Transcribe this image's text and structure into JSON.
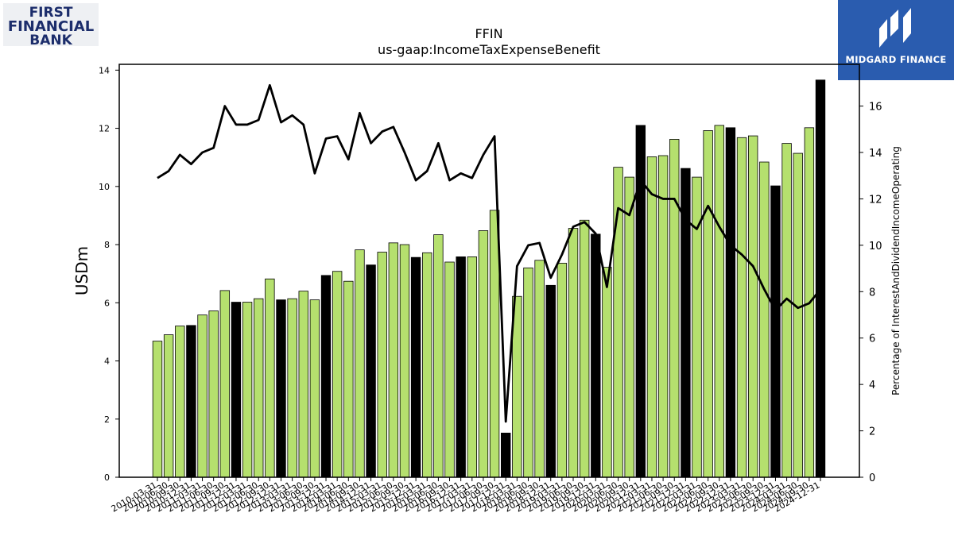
{
  "logos": {
    "left": {
      "line1": "FIRST",
      "line2": "FINANCIAL",
      "line3": "BANK"
    },
    "right": {
      "name": "MIDGARD FINANCE"
    }
  },
  "chart_data": {
    "type": "bar",
    "title": "FFIN",
    "subtitle": "us-gaap:IncomeTaxExpenseBenefit",
    "ylabel": "USDm",
    "ylabel_right": "Percentage of InterestAndDividendIncomeOperating",
    "ylim": [
      0,
      14.2
    ],
    "ylim_right": [
      0,
      17.8
    ],
    "yticks": [
      0,
      2,
      4,
      6,
      8,
      10,
      12,
      14
    ],
    "yticks_right": [
      0,
      2,
      4,
      6,
      8,
      10,
      12,
      14,
      16
    ],
    "grid": false,
    "colors": {
      "bar_default": "#b5e06e",
      "bar_q4": "#000000",
      "line": "#000000"
    },
    "categories": [
      "2010-03-31",
      "2010-06-30",
      "2010-09-30",
      "2010-12-31",
      "2011-03-31",
      "2011-06-30",
      "2011-09-30",
      "2011-12-31",
      "2012-03-31",
      "2012-06-30",
      "2012-09-30",
      "2012-12-31",
      "2013-03-31",
      "2013-06-30",
      "2013-09-30",
      "2013-12-31",
      "2014-03-31",
      "2014-06-30",
      "2014-09-30",
      "2014-12-31",
      "2015-03-31",
      "2015-06-30",
      "2015-09-30",
      "2015-12-31",
      "2016-03-31",
      "2016-06-30",
      "2016-09-30",
      "2016-12-31",
      "2017-03-31",
      "2017-06-30",
      "2017-09-30",
      "2017-12-31",
      "2018-03-31",
      "2018-06-30",
      "2018-09-30",
      "2018-12-31",
      "2019-03-31",
      "2019-06-30",
      "2019-09-30",
      "2019-12-31",
      "2020-03-31",
      "2020-06-30",
      "2020-09-30",
      "2020-12-31",
      "2021-03-31",
      "2021-06-30",
      "2021-09-30",
      "2021-12-31",
      "2022-03-31",
      "2022-06-30",
      "2022-09-30",
      "2022-12-31",
      "2023-03-31",
      "2023-06-30",
      "2023-09-30",
      "2023-12-31",
      "2024-03-31",
      "2024-06-30",
      "2024-09-30",
      "2024-12-31"
    ],
    "series": [
      {
        "type": "bar",
        "axis": "left",
        "values": [
          4.68,
          4.9,
          5.2,
          5.22,
          5.58,
          5.72,
          6.42,
          6.02,
          6.02,
          6.14,
          6.82,
          6.1,
          6.14,
          6.4,
          6.1,
          6.94,
          7.08,
          6.74,
          7.82,
          7.3,
          7.74,
          8.06,
          8.0,
          7.56,
          7.72,
          8.34,
          7.4,
          7.58,
          7.58,
          8.48,
          9.18,
          1.52,
          6.22,
          7.2,
          7.46,
          6.6,
          7.36,
          8.56,
          8.84,
          8.36,
          7.22,
          10.66,
          10.32,
          12.1,
          11.02,
          11.06,
          11.62,
          10.62,
          10.32,
          11.92,
          12.1,
          12.02,
          11.68,
          11.74,
          10.84,
          10.02,
          11.48,
          11.14,
          12.02,
          13.66
        ]
      },
      {
        "type": "line",
        "axis": "right",
        "values": [
          12.9,
          13.2,
          13.9,
          13.5,
          14.0,
          14.2,
          16.0,
          15.2,
          15.2,
          15.4,
          16.9,
          15.3,
          15.6,
          15.2,
          13.1,
          14.6,
          14.7,
          13.7,
          15.7,
          14.4,
          14.9,
          15.1,
          14.0,
          12.8,
          13.2,
          14.4,
          12.8,
          13.1,
          12.9,
          13.9,
          14.7,
          2.4,
          9.1,
          10.0,
          10.1,
          8.6,
          9.6,
          10.8,
          11.0,
          10.5,
          8.2,
          11.6,
          11.3,
          12.8,
          12.2,
          12.0,
          12.0,
          11.1,
          10.7,
          11.7,
          10.8,
          10.0,
          9.6,
          9.1,
          8.1,
          7.2,
          7.7,
          7.3,
          7.5,
          8.1
        ]
      }
    ]
  }
}
